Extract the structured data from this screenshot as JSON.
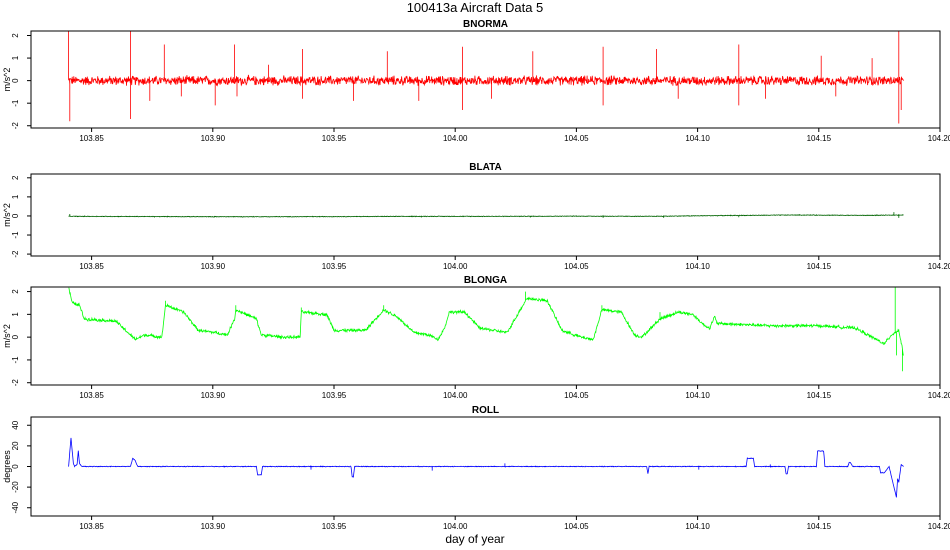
{
  "title": "100413a   Aircraft Data 5",
  "xlabel": "day of year",
  "colors": {
    "BNORMA": "#ff0000",
    "BLATA": "#006400",
    "BLONGA": "#00ff00",
    "ROLL": "#0000ff"
  },
  "chart_data": [
    {
      "type": "line",
      "title": "BNORMA",
      "ylabel": "m/s^2",
      "xlim": [
        103.825,
        104.2
      ],
      "ylim": [
        -2.1,
        2.2
      ],
      "xticks": [
        "103.85",
        "103.90",
        "103.95",
        "104.00",
        "104.05",
        "104.10",
        "104.15",
        "104.20"
      ],
      "yticks": [
        "-2",
        "-1",
        "0",
        "1",
        "2"
      ],
      "series": [
        {
          "name": "BNORMA",
          "style": "noise",
          "x": [
            103.8405,
            103.885,
            103.925,
            103.965,
            104.005,
            104.045,
            104.085,
            104.125,
            104.165,
            104.185
          ],
          "y": [
            0,
            0,
            0,
            0,
            0,
            0,
            0,
            0,
            0,
            0
          ],
          "noise_amp": 0.25,
          "spikes": [
            [
              103.8405,
              2.2
            ],
            [
              103.841,
              -1.8
            ],
            [
              103.866,
              2.2
            ],
            [
              103.866,
              -1.7
            ],
            [
              103.874,
              -0.9
            ],
            [
              103.88,
              1.6
            ],
            [
              103.887,
              -0.7
            ],
            [
              103.901,
              -1.1
            ],
            [
              103.909,
              1.6
            ],
            [
              103.91,
              -0.7
            ],
            [
              103.923,
              0.7
            ],
            [
              103.937,
              1.4
            ],
            [
              103.937,
              -0.8
            ],
            [
              103.958,
              -0.9
            ],
            [
              103.972,
              1.3
            ],
            [
              103.985,
              -0.9
            ],
            [
              104.003,
              1.5
            ],
            [
              104.003,
              -1.3
            ],
            [
              104.015,
              -0.8
            ],
            [
              104.032,
              1.3
            ],
            [
              104.061,
              1.5
            ],
            [
              104.061,
              -1.1
            ],
            [
              104.083,
              1.4
            ],
            [
              104.092,
              -0.8
            ],
            [
              104.117,
              1.6
            ],
            [
              104.117,
              -1.1
            ],
            [
              104.128,
              -0.8
            ],
            [
              104.151,
              1.1
            ],
            [
              104.157,
              -0.7
            ],
            [
              104.172,
              1.0
            ],
            [
              104.183,
              2.2
            ],
            [
              104.183,
              -1.9
            ],
            [
              104.184,
              -1.3
            ]
          ]
        }
      ]
    },
    {
      "type": "line",
      "title": "BLATA",
      "ylabel": "m/s^2",
      "xlim": [
        103.825,
        104.2
      ],
      "ylim": [
        -2.1,
        2.2
      ],
      "xticks": [
        "103.85",
        "103.90",
        "103.95",
        "104.00",
        "104.05",
        "104.10",
        "104.15",
        "104.20"
      ],
      "yticks": [
        "-2",
        "-1",
        "0",
        "1",
        "2"
      ],
      "series": [
        {
          "name": "BLATA",
          "style": "noise",
          "x": [
            103.8405,
            103.87,
            103.9,
            103.93,
            103.96,
            103.99,
            104.02,
            104.05,
            104.08,
            104.11,
            104.14,
            104.17,
            104.185
          ],
          "y": [
            -0.02,
            -0.03,
            -0.04,
            -0.04,
            -0.03,
            -0.02,
            -0.02,
            -0.01,
            -0.02,
            0.02,
            0.05,
            0.03,
            0.05
          ],
          "noise_amp": 0.02,
          "spikes": [
            [
              103.841,
              0.1
            ],
            [
              103.876,
              -0.08
            ],
            [
              103.931,
              -0.07
            ],
            [
              103.986,
              -0.08
            ],
            [
              104.031,
              -0.08
            ],
            [
              104.061,
              -0.1
            ],
            [
              104.086,
              -0.1
            ],
            [
              104.117,
              -0.07
            ],
            [
              104.181,
              0.2
            ],
            [
              104.183,
              -0.1
            ]
          ]
        }
      ]
    },
    {
      "type": "line",
      "title": "BLONGA",
      "ylabel": "m/s^2",
      "xlim": [
        103.825,
        104.2
      ],
      "ylim": [
        -2.1,
        2.2
      ],
      "xticks": [
        "103.85",
        "103.90",
        "103.95",
        "104.00",
        "104.05",
        "104.10",
        "104.15",
        "104.20"
      ],
      "yticks": [
        "-2",
        "-1",
        "0",
        "1",
        "2"
      ],
      "series": [
        {
          "name": "BLONGA",
          "style": "noise",
          "x": [
            103.8405,
            103.842,
            103.845,
            103.847,
            103.86,
            103.864,
            103.868,
            103.872,
            103.879,
            103.8805,
            103.888,
            103.894,
            103.901,
            103.906,
            103.909,
            103.9095,
            103.918,
            103.92,
            103.929,
            103.936,
            103.9365,
            103.947,
            103.95,
            103.9575,
            103.963,
            103.9705,
            103.976,
            103.983,
            103.989,
            103.993,
            103.996,
            103.9975,
            104.004,
            104.01,
            104.0215,
            104.0295,
            104.038,
            104.044,
            104.052,
            104.057,
            104.0605,
            104.0685,
            104.074,
            104.077,
            104.0845,
            104.092,
            104.098,
            104.103,
            104.105,
            104.107,
            104.108,
            104.13,
            104.15,
            104.165,
            104.172,
            104.177,
            104.18,
            104.183,
            104.185
          ],
          "y": [
            2.2,
            1.5,
            1.4,
            0.8,
            0.7,
            0.3,
            -0.1,
            0.1,
            0.0,
            1.4,
            1.1,
            0.3,
            0.2,
            0.1,
            0.8,
            1.2,
            0.8,
            0.1,
            0.0,
            0.0,
            1.1,
            1.0,
            0.3,
            0.3,
            0.3,
            1.2,
            0.9,
            0.2,
            0.1,
            -0.1,
            0.5,
            1.1,
            1.1,
            0.4,
            0.2,
            1.7,
            1.6,
            0.3,
            0.0,
            -0.1,
            1.2,
            1.1,
            0.1,
            0.0,
            0.8,
            1.1,
            1.0,
            0.5,
            0.4,
            0.9,
            0.6,
            0.5,
            0.5,
            0.4,
            0.0,
            -0.3,
            0.1,
            0.3,
            -0.8
          ],
          "noise_amp": 0.08,
          "spikes": [
            [
              103.8805,
              1.6
            ],
            [
              103.9095,
              1.4
            ],
            [
              103.9365,
              1.3
            ],
            [
              103.9705,
              1.4
            ],
            [
              104.029,
              2.0
            ],
            [
              104.0605,
              1.4
            ],
            [
              104.0845,
              1.1
            ],
            [
              104.1815,
              2.2
            ],
            [
              104.182,
              -0.8
            ],
            [
              104.1845,
              -1.5
            ]
          ]
        }
      ]
    },
    {
      "type": "line",
      "title": "ROLL",
      "ylabel": "degrees",
      "xlim": [
        103.825,
        104.2
      ],
      "ylim": [
        -48,
        48
      ],
      "xticks": [
        "103.85",
        "103.90",
        "103.95",
        "104.00",
        "104.05",
        "104.10",
        "104.15",
        "104.20"
      ],
      "yticks": [
        "-40",
        "-20",
        "0",
        "20",
        "40"
      ],
      "series": [
        {
          "name": "ROLL",
          "style": "noise",
          "x": [
            103.8405,
            103.8415,
            103.842,
            103.8425,
            103.843,
            103.844,
            103.8445,
            103.845,
            103.846,
            103.866,
            103.867,
            103.868,
            103.869,
            103.918,
            103.9185,
            103.92,
            103.9205,
            103.957,
            103.9575,
            103.958,
            103.9585,
            104.079,
            104.0795,
            104.08,
            104.12,
            104.1205,
            104.123,
            104.1235,
            104.136,
            104.1365,
            104.137,
            104.1375,
            104.149,
            104.1495,
            104.152,
            104.1525,
            104.162,
            104.1625,
            104.163,
            104.164,
            104.175,
            104.1755,
            104.177,
            104.179,
            104.18,
            104.181,
            104.182,
            104.1825,
            104.183,
            104.184,
            104.185
          ],
          "y": [
            0,
            28,
            15,
            3,
            0,
            2,
            15,
            3,
            0,
            0,
            8,
            6,
            0,
            0,
            -8,
            -8,
            0,
            0,
            -10,
            -10,
            0,
            0,
            -7,
            0,
            0,
            8,
            8,
            0,
            0,
            -7,
            -7,
            0,
            0,
            15,
            15,
            0,
            0,
            4,
            4,
            0,
            0,
            -6,
            -6,
            0,
            -10,
            -20,
            -30,
            -12,
            -15,
            2,
            0
          ],
          "noise_amp": 0.4,
          "spikes": [
            [
              103.9405,
              -3
            ],
            [
              103.9905,
              -4
            ],
            [
              104.0205,
              3
            ],
            [
              104.1005,
              -3
            ],
            [
              104.13,
              2
            ]
          ]
        }
      ]
    }
  ]
}
